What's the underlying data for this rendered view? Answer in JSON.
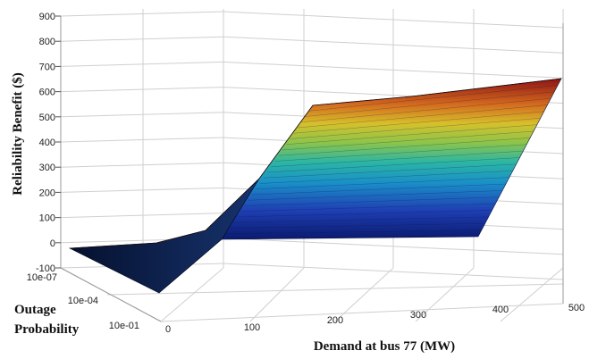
{
  "chart_data": {
    "type": "surface",
    "zlabel": "Reliability Benefit ($)",
    "xlabel": "Demand at bus 77 (MW)",
    "ylabel_line1": "Outage",
    "ylabel_line2": "Probability",
    "zlim": [
      -100,
      900
    ],
    "z_ticks": [
      "900",
      "800",
      "700",
      "600",
      "500",
      "400",
      "300",
      "200",
      "100",
      "0",
      "-100"
    ],
    "xlim": [
      0,
      500
    ],
    "x_ticks": [
      "0",
      "100",
      "200",
      "300",
      "400",
      "500"
    ],
    "y_ticks": [
      "10e-07",
      "10e-04",
      "10e-01"
    ],
    "grid": true,
    "colormap": "jet",
    "surface": {
      "demand_mw": [
        0,
        100,
        150,
        200,
        300,
        400,
        500
      ],
      "outage_probability": [
        "10e-07",
        "10e-04",
        "10e-01"
      ],
      "benefit_at_high_probability": [
        -100,
        -20,
        0,
        0,
        0,
        0,
        0
      ],
      "benefit_at_low_probability": [
        0,
        0,
        30,
        150,
        560,
        600,
        660
      ]
    }
  }
}
